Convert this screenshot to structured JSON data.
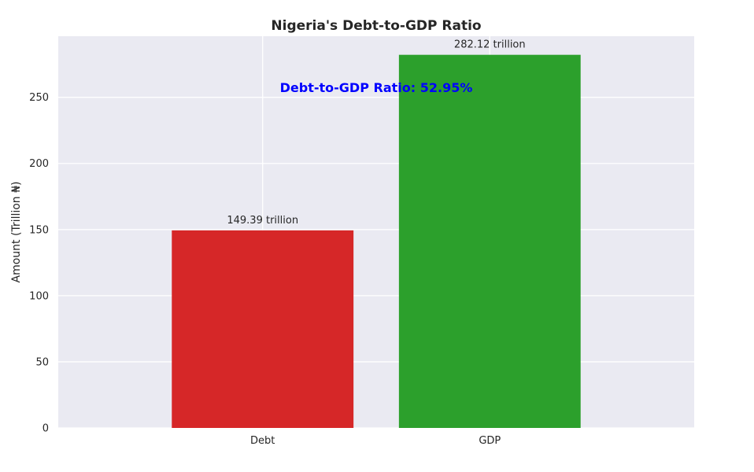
{
  "chart_data": {
    "type": "bar",
    "title": "Nigeria's Debt-to-GDP Ratio",
    "xlabel": "",
    "ylabel": "Amount (Trillion ₦)",
    "categories": [
      "Debt",
      "GDP"
    ],
    "values": [
      149.39,
      282.12
    ],
    "bar_labels": [
      "149.39 trillion",
      "282.12 trillion"
    ],
    "colors": [
      "#d62728",
      "#2ca02c"
    ],
    "ylim": [
      0,
      296.2
    ],
    "yticks": [
      0,
      50,
      100,
      150,
      200,
      250
    ],
    "annotation": {
      "text": "Debt-to-GDP Ratio: 52.95%",
      "color": "#0000ff"
    },
    "grid": true,
    "plot_background": "#eaeaf2"
  }
}
